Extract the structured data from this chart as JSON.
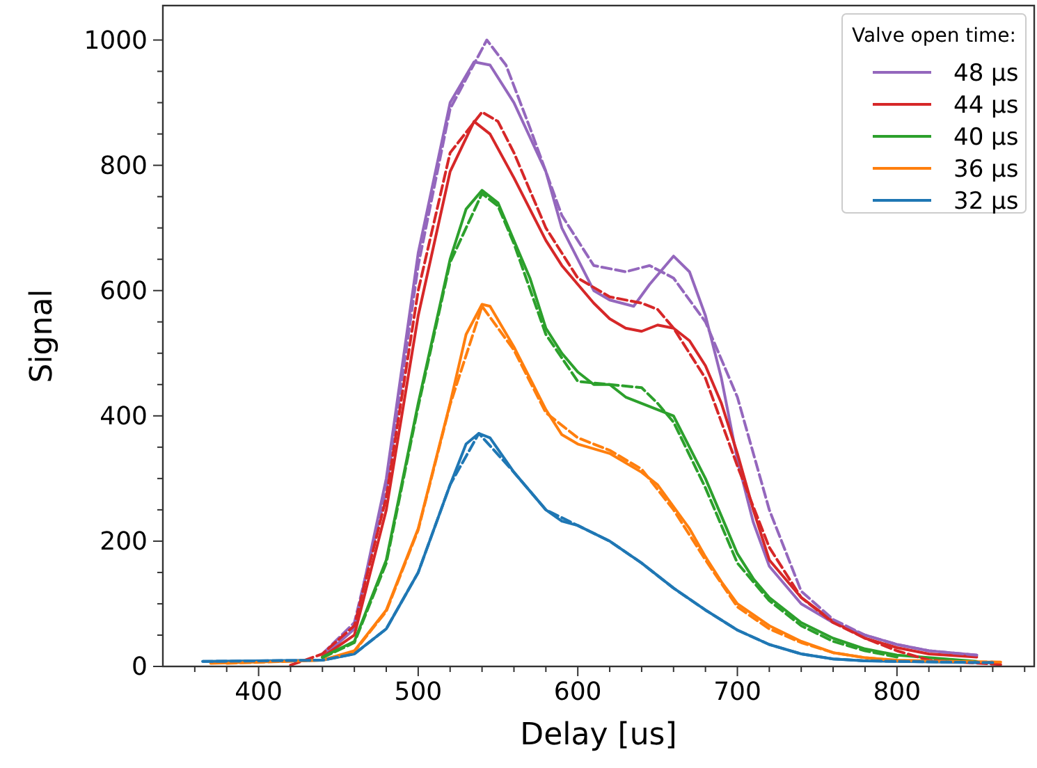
{
  "chart_data": {
    "type": "line",
    "xlabel": "Delay [us]",
    "ylabel": "Signal",
    "legend_title": "Valve open time:",
    "legend": "top right",
    "grid": false,
    "xlim": [
      340,
      886
    ],
    "ylim": [
      0,
      1055
    ],
    "xticks": [
      {
        "value": 360,
        "label": null
      },
      {
        "value": 380,
        "label": null
      },
      400,
      {
        "value": 420,
        "label": null
      },
      {
        "value": 440,
        "label": null
      },
      {
        "value": 460,
        "label": null
      },
      {
        "value": 480,
        "label": null
      },
      500,
      {
        "value": 520,
        "label": null
      },
      {
        "value": 540,
        "label": null
      },
      {
        "value": 560,
        "label": null
      },
      {
        "value": 580,
        "label": null
      },
      600,
      {
        "value": 620,
        "label": null
      },
      {
        "value": 640,
        "label": null
      },
      {
        "value": 660,
        "label": null
      },
      {
        "value": 680,
        "label": null
      },
      700,
      {
        "value": 720,
        "label": null
      },
      {
        "value": 740,
        "label": null
      },
      {
        "value": 760,
        "label": null
      },
      {
        "value": 780,
        "label": null
      },
      800,
      {
        "value": 820,
        "label": null
      },
      {
        "value": 840,
        "label": null
      },
      {
        "value": 860,
        "label": null
      },
      {
        "value": 880,
        "label": null
      }
    ],
    "yticks": [
      0,
      {
        "value": 50,
        "label": null
      },
      {
        "value": 100,
        "label": null
      },
      {
        "value": 150,
        "label": null
      },
      200,
      {
        "value": 250,
        "label": null
      },
      {
        "value": 300,
        "label": null
      },
      {
        "value": 350,
        "label": null
      },
      400,
      {
        "value": 450,
        "label": null
      },
      {
        "value": 500,
        "label": null
      },
      {
        "value": 550,
        "label": null
      },
      600,
      {
        "value": 650,
        "label": null
      },
      {
        "value": 700,
        "label": null
      },
      {
        "value": 750,
        "label": null
      },
      800,
      {
        "value": 850,
        "label": null
      },
      {
        "value": 900,
        "label": null
      },
      {
        "value": 950,
        "label": null
      },
      1000
    ],
    "series": [
      {
        "name": "48 μs",
        "color": "#9467bd",
        "line_style": "solid",
        "x": [
          440,
          460,
          480,
          500,
          520,
          535,
          545,
          560,
          580,
          590,
          600,
          610,
          620,
          635,
          645,
          660,
          670,
          680,
          690,
          700,
          710,
          720,
          740,
          760,
          780,
          800,
          820,
          850
        ],
        "values": [
          15,
          60,
          300,
          660,
          900,
          965,
          960,
          900,
          790,
          700,
          650,
          600,
          585,
          575,
          610,
          655,
          630,
          560,
          460,
          330,
          230,
          160,
          100,
          70,
          50,
          35,
          25,
          18
        ]
      },
      {
        "name": "44 μs",
        "color": "#d62728",
        "line_style": "solid",
        "x": [
          440,
          460,
          480,
          500,
          520,
          535,
          545,
          560,
          570,
          580,
          590,
          600,
          610,
          620,
          630,
          640,
          650,
          660,
          670,
          680,
          690,
          700,
          710,
          720,
          740,
          760,
          780,
          800,
          820,
          850
        ],
        "values": [
          15,
          50,
          250,
          560,
          790,
          870,
          850,
          780,
          730,
          680,
          640,
          610,
          580,
          555,
          540,
          535,
          545,
          540,
          520,
          480,
          420,
          340,
          250,
          170,
          110,
          72,
          45,
          30,
          20,
          15
        ]
      },
      {
        "name": "40 μs",
        "color": "#2ca02c",
        "line_style": "solid",
        "x": [
          440,
          460,
          480,
          500,
          520,
          530,
          540,
          550,
          560,
          570,
          580,
          590,
          600,
          610,
          620,
          630,
          640,
          650,
          660,
          670,
          680,
          690,
          700,
          710,
          720,
          740,
          760,
          780,
          800,
          850
        ],
        "values": [
          15,
          40,
          170,
          420,
          650,
          730,
          760,
          740,
          680,
          620,
          540,
          500,
          470,
          450,
          450,
          430,
          420,
          410,
          400,
          350,
          300,
          240,
          180,
          140,
          110,
          70,
          45,
          28,
          18,
          8
        ]
      },
      {
        "name": "36 μs",
        "color": "#ff7f0e",
        "line_style": "solid",
        "x": [
          370,
          440,
          460,
          480,
          500,
          520,
          530,
          540,
          545,
          560,
          570,
          580,
          590,
          600,
          620,
          640,
          650,
          660,
          670,
          680,
          690,
          700,
          720,
          740,
          760,
          780,
          800,
          850,
          860
        ],
        "values": [
          5,
          10,
          25,
          90,
          220,
          420,
          530,
          578,
          575,
          510,
          460,
          410,
          370,
          355,
          340,
          310,
          290,
          255,
          220,
          175,
          135,
          100,
          65,
          40,
          22,
          14,
          10,
          7,
          7
        ]
      },
      {
        "name": "32 μs",
        "color": "#1f77b4",
        "line_style": "solid",
        "x": [
          365,
          440,
          460,
          480,
          500,
          520,
          530,
          538,
          545,
          560,
          570,
          580,
          590,
          600,
          620,
          640,
          660,
          680,
          700,
          720,
          740,
          760,
          780,
          800,
          850,
          860
        ],
        "values": [
          8,
          10,
          20,
          60,
          150,
          290,
          355,
          372,
          365,
          310,
          280,
          250,
          232,
          225,
          200,
          165,
          125,
          90,
          58,
          35,
          20,
          12,
          9,
          8,
          6,
          6
        ]
      },
      {
        "color": "#9467bd",
        "line_style": "dashed",
        "x": [
          440,
          460,
          480,
          500,
          520,
          543,
          555,
          570,
          590,
          610,
          630,
          645,
          660,
          680,
          700,
          720,
          740,
          760,
          780,
          800,
          820,
          850
        ],
        "values": [
          20,
          70,
          280,
          640,
          890,
          1000,
          960,
          860,
          720,
          640,
          630,
          640,
          620,
          550,
          430,
          250,
          120,
          75,
          50,
          35,
          25,
          18
        ]
      },
      {
        "color": "#d62728",
        "line_style": "dashed",
        "x": [
          420,
          440,
          460,
          480,
          500,
          520,
          540,
          550,
          560,
          580,
          600,
          620,
          640,
          650,
          660,
          680,
          700,
          720,
          740,
          760,
          780,
          800,
          820,
          865
        ],
        "values": [
          2,
          20,
          65,
          270,
          600,
          820,
          885,
          870,
          820,
          700,
          620,
          590,
          580,
          570,
          540,
          460,
          320,
          190,
          110,
          70,
          45,
          25,
          10,
          3
        ]
      },
      {
        "color": "#2ca02c",
        "line_style": "dashed",
        "x": [
          440,
          460,
          480,
          500,
          520,
          540,
          550,
          560,
          580,
          600,
          620,
          640,
          650,
          660,
          680,
          700,
          720,
          740,
          760,
          780,
          800
        ],
        "values": [
          14,
          38,
          165,
          415,
          645,
          755,
          735,
          675,
          530,
          455,
          450,
          445,
          420,
          390,
          285,
          165,
          105,
          65,
          40,
          25,
          15
        ]
      },
      {
        "color": "#ff7f0e",
        "line_style": "dashed",
        "x": [
          380,
          440,
          460,
          480,
          500,
          520,
          540,
          560,
          580,
          600,
          620,
          640,
          660,
          680,
          700,
          720,
          740,
          760,
          780,
          800,
          865
        ],
        "values": [
          5,
          10,
          24,
          88,
          218,
          418,
          575,
          505,
          405,
          365,
          345,
          315,
          250,
          170,
          95,
          60,
          38,
          22,
          14,
          9,
          7
        ]
      },
      {
        "color": "#1f77b4",
        "line_style": "dashed",
        "x": [
          365,
          440,
          460,
          480,
          500,
          520,
          538,
          560,
          580,
          600,
          620,
          640,
          660,
          680,
          700,
          720,
          740,
          760,
          780,
          800,
          860
        ],
        "values": [
          8,
          10,
          20,
          60,
          150,
          290,
          372,
          310,
          250,
          225,
          200,
          165,
          125,
          90,
          58,
          35,
          20,
          12,
          9,
          8,
          6
        ]
      }
    ]
  }
}
